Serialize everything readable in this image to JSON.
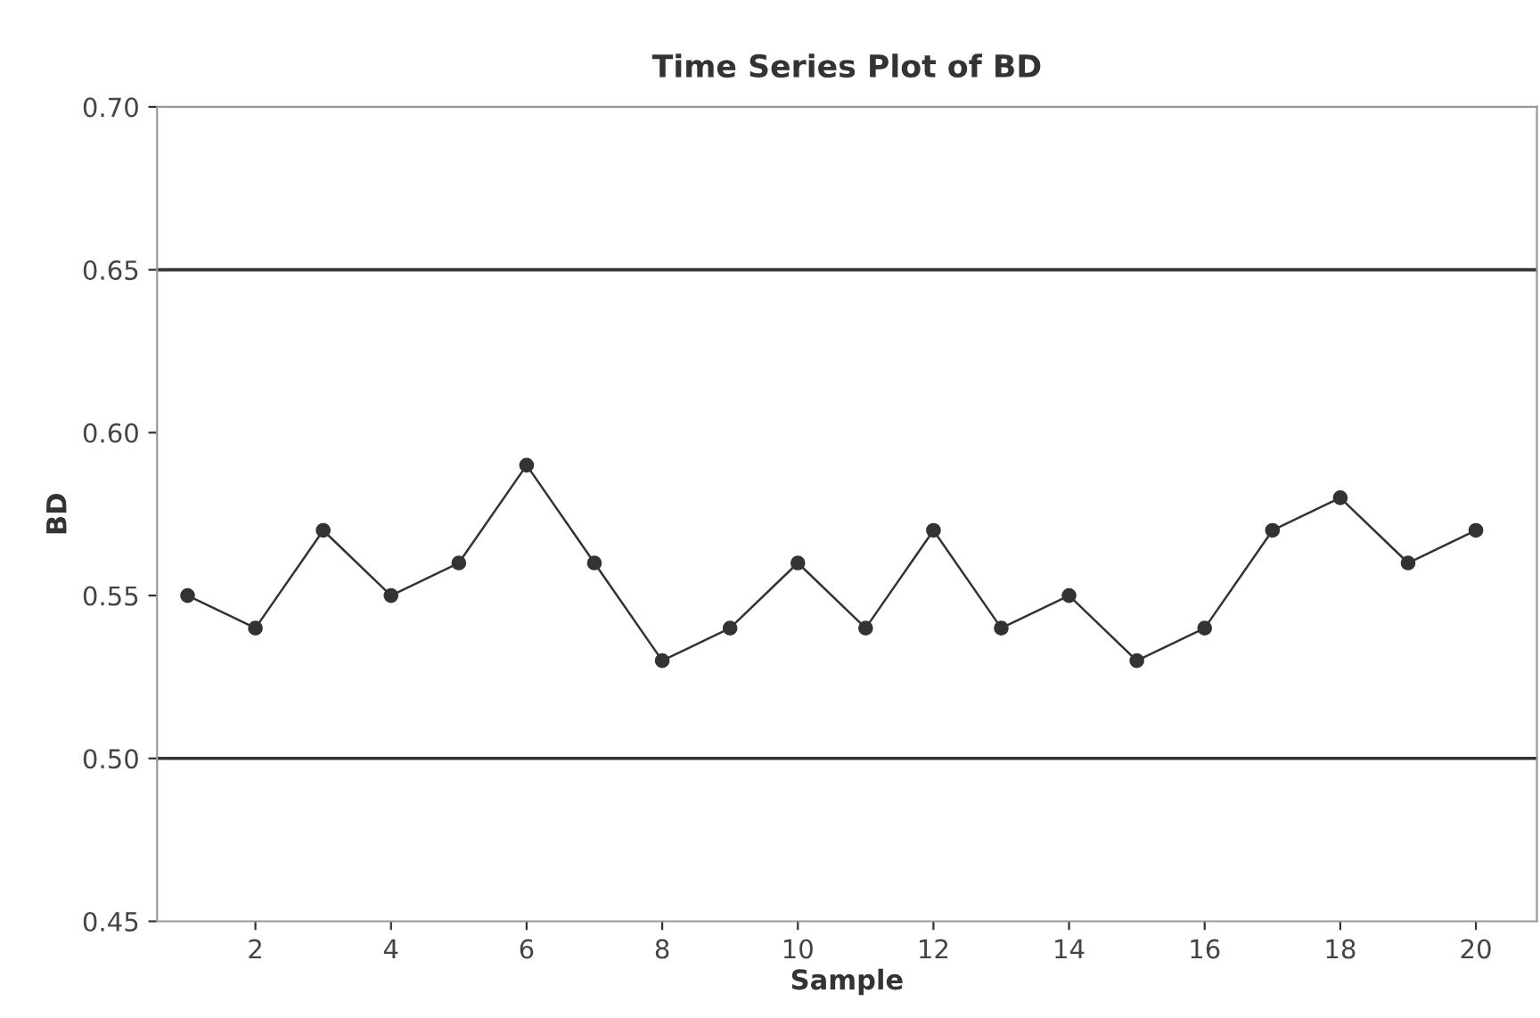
{
  "chart_data": {
    "type": "line",
    "title": "Time Series Plot of BD",
    "xlabel": "Sample",
    "ylabel": "BD",
    "x": [
      1,
      2,
      3,
      4,
      5,
      6,
      7,
      8,
      9,
      10,
      11,
      12,
      13,
      14,
      15,
      16,
      17,
      18,
      19,
      20
    ],
    "series": [
      {
        "color": "#333333",
        "values": [
          0.55,
          0.54,
          0.57,
          0.55,
          0.56,
          0.59,
          0.56,
          0.53,
          0.54,
          0.56,
          0.54,
          0.57,
          0.54,
          0.55,
          0.53,
          0.54,
          0.57,
          0.58,
          0.56,
          0.57
        ]
      }
    ],
    "xlim": [
      0.55,
      20.9
    ],
    "xticks": [
      2,
      4,
      6,
      8,
      10,
      12,
      14,
      16,
      18,
      20
    ],
    "ylim": [
      0.45,
      0.7
    ],
    "yticks": [
      {
        "value": 0.45,
        "label": "0.45"
      },
      {
        "value": 0.5,
        "label": "0.50"
      },
      {
        "value": 0.55,
        "label": "0.55"
      },
      {
        "value": 0.6,
        "label": "0.60"
      },
      {
        "value": 0.65,
        "label": "0.65"
      },
      {
        "value": 0.7,
        "label": "0.70"
      }
    ],
    "ref_lines": [
      {
        "axis": "y",
        "value": 0.65,
        "color": "#333333"
      },
      {
        "axis": "y",
        "value": 0.5,
        "color": "#333333"
      }
    ],
    "marker": "circle",
    "line_style": "solid",
    "grid": false,
    "legend": false
  }
}
